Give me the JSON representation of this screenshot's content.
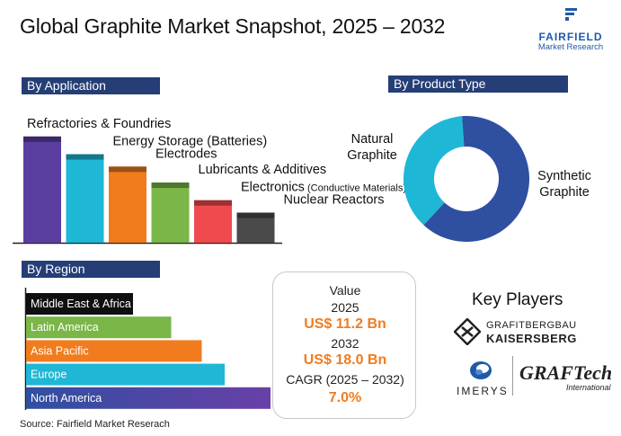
{
  "title": "Global Graphite Market Snapshot, 2025 – 2032",
  "logo": {
    "name": "FAIRFIELD",
    "sub": "Market Research"
  },
  "sections": {
    "application": "By Application",
    "product": "By Product Type",
    "region": "By Region"
  },
  "value_box": {
    "label": "Value",
    "year1": "2025",
    "value1": "US$ 11.2 Bn",
    "year2": "2032",
    "value2": "US$ 18.0 Bn",
    "cagr_label": "CAGR (2025 – 2032)",
    "cagr": "7.0%"
  },
  "key_players": {
    "title": "Key Players",
    "items": [
      {
        "line1": "GRAFITBERGBAU",
        "line2": "KAISERSBERG"
      },
      {
        "line1": "IMERYS"
      },
      {
        "line1": "GRAFTech",
        "line2": "International"
      }
    ]
  },
  "source": "Source: Fairfield Market Reserach",
  "chart_data": [
    {
      "type": "bar",
      "title": "By Application",
      "categories": [
        "Refractories & Foundries",
        "Energy Storage (Batteries)",
        "Electrodes",
        "Lubricants & Additives",
        "Electronics",
        "Nuclear Reactors"
      ],
      "category_notes": [
        "",
        "",
        "",
        "",
        "(Conductive Materials)",
        ""
      ],
      "values": [
        6,
        5,
        4.3,
        3.4,
        2.4,
        1.7
      ],
      "colors": [
        "#5b3fa0",
        "#1fb7d6",
        "#f07c1e",
        "#7ab648",
        "#f04a4f",
        "#4a4a4a"
      ],
      "ylim": [
        0,
        6.5
      ],
      "legend": "none"
    },
    {
      "type": "pie",
      "title": "By Product Type",
      "categories": [
        "Natural Graphite",
        "Synthetic Graphite"
      ],
      "category_lines": [
        [
          "Natural",
          "Graphite"
        ],
        [
          "Synthetic",
          "Graphite"
        ]
      ],
      "values": [
        37,
        63
      ],
      "colors": [
        "#1fb7d6",
        "#2f4fa0"
      ],
      "donut": true
    },
    {
      "type": "bar",
      "orientation": "horizontal",
      "title": "By Region",
      "categories": [
        "Middle East & Africa",
        "Latin America",
        "Asia Pacific",
        "Europe",
        "North America"
      ],
      "values": [
        1.4,
        1.9,
        2.3,
        2.6,
        3.2
      ],
      "colors": [
        "#0f0f0f",
        "#7ab648",
        "#f07c1e",
        "#1fb7d6",
        "#5b3fa0"
      ],
      "xlim": [
        0,
        3.2
      ]
    }
  ]
}
